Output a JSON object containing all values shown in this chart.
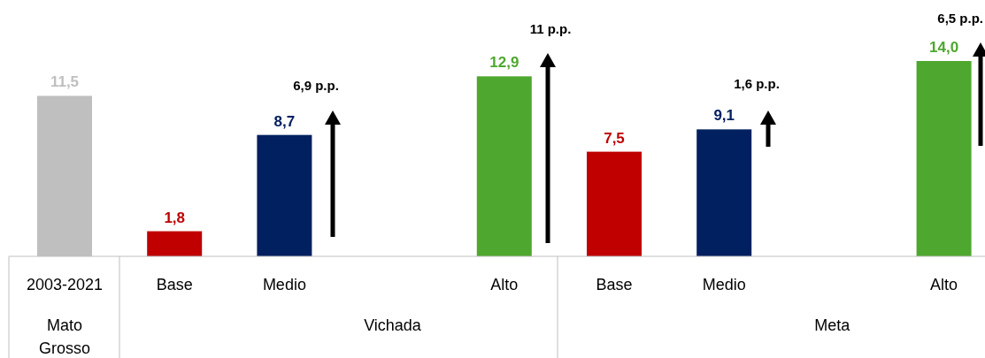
{
  "chart_data": {
    "type": "bar",
    "categories": [
      "2003-2021",
      "Base",
      "Medio",
      null,
      "Alto",
      "Base",
      "Medio",
      null,
      "Alto"
    ],
    "values": [
      11.5,
      1.8,
      8.7,
      null,
      12.9,
      7.5,
      9.1,
      null,
      14.0
    ],
    "colors": [
      "#bfbfbf",
      "#c00000",
      "#002060",
      null,
      "#4ea72e",
      "#c00000",
      "#002060",
      null,
      "#4ea72e"
    ],
    "value_labels": [
      "11,5",
      "1,8",
      "8,7",
      null,
      "12,9",
      "7,5",
      "9,1",
      null,
      "14,0"
    ],
    "annotations": [
      "6,9 p.p.",
      "11 p.p.",
      "1,6 p.p.",
      "6,5 p.p.",
      "Mato Grosso",
      "Vichada",
      "Meta"
    ]
  }
}
